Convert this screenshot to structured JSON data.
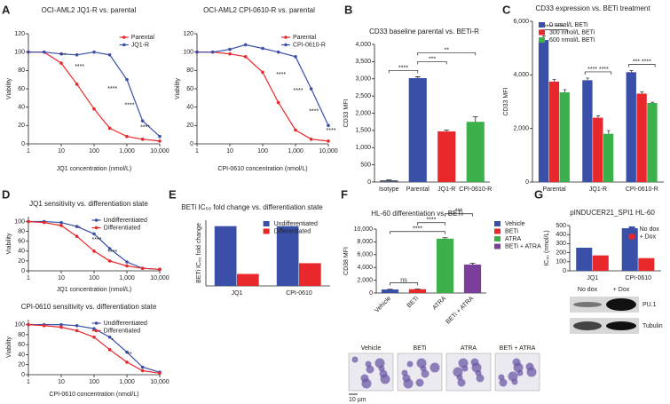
{
  "chart_data": [
    {
      "panel": "A",
      "type": "line",
      "title": "OCI-AML2 JQ1-R vs. parental",
      "xlabel": "JQ1 concentration (nmol/L)",
      "ylabel": "Viability",
      "xlog": true,
      "x": [
        1,
        3,
        10,
        30,
        100,
        300,
        1000,
        3000,
        10000
      ],
      "xlim": [
        1,
        10000
      ],
      "xticks": [
        1,
        10,
        100,
        {
          "value": 1000,
          "label": "1,000"
        },
        {
          "value": 10000,
          "label": "10,000"
        }
      ],
      "ylim": [
        0,
        120
      ],
      "yticks": [
        0,
        20,
        40,
        60,
        80,
        100,
        120
      ],
      "legend": "upper right",
      "series": [
        {
          "name": "Parental",
          "color": "#e8282b",
          "values": [
            100,
            100,
            88,
            65,
            38,
            17,
            8,
            5,
            3
          ]
        },
        {
          "name": "JQ1-R",
          "color": "#3a4fa8",
          "values": [
            100,
            100,
            98,
            97,
            100,
            97,
            70,
            25,
            8
          ]
        }
      ],
      "annotations": [
        {
          "x": 10,
          "text": "**"
        },
        {
          "x": 30,
          "text": "****"
        },
        {
          "x": 300,
          "text": "****"
        },
        {
          "x": 1000,
          "text": "****"
        },
        {
          "x": 3000,
          "text": "****"
        }
      ]
    },
    {
      "type": "line",
      "title": "OCI-AML2 CPI-0610-R vs. parental",
      "xlabel": "CPI-0610 concentration (nmol/L)",
      "ylabel": "Viability",
      "xlog": true,
      "x": [
        1,
        3,
        10,
        30,
        100,
        300,
        1000,
        3000,
        10000
      ],
      "xlim": [
        1,
        10000
      ],
      "xticks": [
        1,
        10,
        100,
        {
          "value": 1000,
          "label": "1,000"
        },
        {
          "value": 10000,
          "label": "10,000"
        }
      ],
      "ylim": [
        0,
        120
      ],
      "yticks": [
        0,
        20,
        40,
        60,
        80,
        100,
        120
      ],
      "legend": "upper right",
      "series": [
        {
          "name": "Parental",
          "color": "#e8282b",
          "values": [
            100,
            100,
            98,
            95,
            78,
            45,
            15,
            5,
            3
          ]
        },
        {
          "name": "CPI-0610-R",
          "color": "#3a4fa8",
          "values": [
            100,
            100,
            103,
            108,
            104,
            100,
            95,
            60,
            20
          ]
        }
      ],
      "annotations": [
        {
          "x": 300,
          "text": "****"
        },
        {
          "x": 1000,
          "text": "****"
        },
        {
          "x": 3000,
          "text": "****"
        },
        {
          "x": 10000,
          "text": "****"
        }
      ]
    },
    {
      "panel": "B",
      "type": "bar",
      "title": "CD33 baseline parental vs. BETi-R",
      "ylabel": "CD33 MFI",
      "categories": [
        "Isotype",
        "Parental",
        "JQ1-R",
        "CPI-0610-R"
      ],
      "values": [
        50,
        3020,
        1470,
        1750
      ],
      "errors": [
        10,
        40,
        40,
        150
      ],
      "colors": [
        "#555a6e",
        "#3a4fa8",
        "#e8282b",
        "#3cb04a"
      ],
      "ylim": [
        0,
        4000
      ],
      "yticks": [
        0,
        500,
        {
          "value": 1000,
          "label": "1,000"
        },
        {
          "value": 1500,
          "label": "1,500"
        },
        {
          "value": 2000,
          "label": "2,000"
        },
        {
          "value": 2500,
          "label": "2,500"
        },
        {
          "value": 3000,
          "label": "3,000"
        },
        {
          "value": 3500,
          "label": "3,500"
        },
        {
          "value": 4000,
          "label": "4,000"
        }
      ],
      "brackets": [
        {
          "from": "Isotype",
          "to": "Parental",
          "text": "****"
        },
        {
          "from": "Parental",
          "to": "JQ1-R",
          "text": "***"
        },
        {
          "from": "Parental",
          "to": "CPI-0610-R",
          "text": "**"
        }
      ]
    },
    {
      "panel": "C",
      "type": "grouped_bar",
      "title": "CD33 expression vs. BETi treatment",
      "ylabel": "CD33 MFI",
      "categories": [
        "Parental",
        "JQ1-R",
        "CPI-0610-R"
      ],
      "ylim": [
        0,
        6000
      ],
      "yticks": [
        0,
        {
          "value": 2000,
          "label": "2,000"
        },
        {
          "value": 4000,
          "label": "4,000"
        },
        {
          "value": 6000,
          "label": "6,000"
        }
      ],
      "legend": "upper left",
      "series": [
        {
          "name": "0 nmol/L BETi",
          "color": "#3a4fa8",
          "values": [
            5300,
            3800,
            4100
          ],
          "errors": [
            150,
            80,
            60
          ]
        },
        {
          "name": "300 nmol/L BETi",
          "color": "#e8282b",
          "values": [
            3750,
            2400,
            3300
          ],
          "errors": [
            80,
            70,
            60
          ]
        },
        {
          "name": "600 nmol/L BETi",
          "color": "#3cb04a",
          "values": [
            3350,
            1800,
            2950
          ],
          "errors": [
            100,
            120,
            30
          ]
        }
      ],
      "group_annotations": [
        {
          "category": "Parental",
          "text": "**** ****"
        },
        {
          "category": "JQ1-R",
          "text": "**** ****"
        },
        {
          "category": "CPI-0610-R",
          "text": "*** ****"
        }
      ]
    },
    {
      "panel": "D",
      "type": "line",
      "title": "JQ1 sensitivity vs. differentiation state",
      "xlabel": "JQ1 concentration (nmol/L)",
      "ylabel": "Viability",
      "xlog": true,
      "x": [
        1,
        3,
        10,
        30,
        100,
        300,
        1000,
        3000,
        10000
      ],
      "xlim": [
        1,
        10000
      ],
      "xticks": [
        1,
        10,
        100,
        {
          "value": 1000,
          "label": "1,000"
        },
        {
          "value": 10000,
          "label": "10,000"
        }
      ],
      "ylim": [
        0,
        110
      ],
      "yticks": [
        0,
        20,
        40,
        60,
        80,
        100
      ],
      "legend": "upper right",
      "series": [
        {
          "name": "Undifferentiated",
          "color": "#3a4fa8",
          "values": [
            100,
            100,
            98,
            90,
            75,
            45,
            18,
            5,
            3
          ]
        },
        {
          "name": "Differentiated",
          "color": "#e8282b",
          "values": [
            100,
            98,
            92,
            70,
            40,
            20,
            10,
            5,
            3
          ]
        }
      ],
      "annotations": [
        {
          "x": 30,
          "text": "*"
        },
        {
          "x": 100,
          "text": "****"
        },
        {
          "x": 300,
          "text": "****"
        }
      ]
    },
    {
      "type": "line",
      "title": "CPI-0610 sensitivity vs. differentiation state",
      "xlabel": "CPI-0610 concentration (nmol/L)",
      "ylabel": "Viability",
      "xlog": true,
      "x": [
        1,
        3,
        10,
        30,
        100,
        300,
        1000,
        3000,
        10000
      ],
      "xlim": [
        1,
        10000
      ],
      "xticks": [
        1,
        10,
        100,
        {
          "value": 1000,
          "label": "1,000"
        },
        {
          "value": 10000,
          "label": "10,000"
        }
      ],
      "ylim": [
        0,
        110
      ],
      "yticks": [
        0,
        20,
        40,
        60,
        80,
        100
      ],
      "legend": "upper right",
      "series": [
        {
          "name": "Undifferentiated",
          "color": "#3a4fa8",
          "values": [
            100,
            100,
            100,
            98,
            92,
            75,
            45,
            15,
            5
          ]
        },
        {
          "name": "Differentiated",
          "color": "#e8282b",
          "values": [
            100,
            98,
            95,
            88,
            75,
            50,
            25,
            8,
            3
          ]
        }
      ],
      "annotations": [
        {
          "x": 300,
          "text": "*"
        },
        {
          "x": 1000,
          "text": "**"
        }
      ]
    },
    {
      "panel": "E",
      "type": "grouped_bar",
      "title": "BETi IC₅₀ fold change vs. differentiation state",
      "ylabel": "BETi IC₅₀ fold change",
      "categories": [
        "JQ1",
        "CPI-0610"
      ],
      "ylim": [
        0,
        1.1
      ],
      "legend": "upper right",
      "series": [
        {
          "name": "Undifferentiated",
          "color": "#3a4fa8",
          "values": [
            1,
            1
          ]
        },
        {
          "name": "Differentiated",
          "color": "#e8282b",
          "values": [
            0.2,
            0.38
          ]
        }
      ]
    },
    {
      "panel": "F",
      "type": "bar",
      "title": "HL-60 differentiation vs. BETi",
      "ylabel": "CD38 MFI",
      "categories": [
        "Vehicle",
        "BETi",
        "ATRA",
        "BETi + ATRA"
      ],
      "values": [
        550,
        600,
        8500,
        4450
      ],
      "errors": [
        30,
        30,
        150,
        200
      ],
      "colors": [
        "#3a4fa8",
        "#e8282b",
        "#3cb04a",
        "#7b3f9a"
      ],
      "ylim": [
        0,
        10000
      ],
      "yticks": [
        0,
        {
          "value": 2000,
          "label": "2,000"
        },
        {
          "value": 4000,
          "label": "4,000"
        },
        {
          "value": 6000,
          "label": "6,000"
        },
        {
          "value": 8000,
          "label": "8,000"
        },
        {
          "value": 10000,
          "label": "10,000"
        }
      ],
      "legend": "right",
      "brackets": [
        {
          "from": "Vehicle",
          "to": "BETi",
          "text": "ns"
        },
        {
          "from": "Vehicle",
          "to": "ATRA",
          "text": "****"
        },
        {
          "from": "BETi",
          "to": "ATRA",
          "text": "****"
        },
        {
          "from": "ATRA",
          "to": "BETi + ATRA",
          "text": "***"
        }
      ]
    },
    {
      "panel": "G",
      "type": "grouped_bar",
      "title": "pINDUCER21_SPI1 HL-60",
      "ylabel": "IC₅₀ (nmol/L)",
      "categories": [
        "JQ1",
        "CPI-0610"
      ],
      "ylim": [
        0,
        500
      ],
      "yticks": [
        0,
        100,
        200,
        300,
        400,
        500
      ],
      "legend": "upper right",
      "series": [
        {
          "name": "No dox",
          "color": "#3a4fa8",
          "values": [
            255,
            470
          ]
        },
        {
          "name": "+ Dox",
          "color": "#e8282b",
          "values": [
            170,
            140
          ]
        }
      ]
    }
  ],
  "figure": {
    "micrographs": {
      "labels": [
        "Vehicle",
        "BETi",
        "ATRA",
        "BETi + ATRA"
      ],
      "scale_bar": "10 µm"
    },
    "blot": {
      "lanes": [
        "No dox",
        "+ Dox"
      ],
      "bands": [
        "PU.1",
        "Tubulin"
      ]
    }
  }
}
